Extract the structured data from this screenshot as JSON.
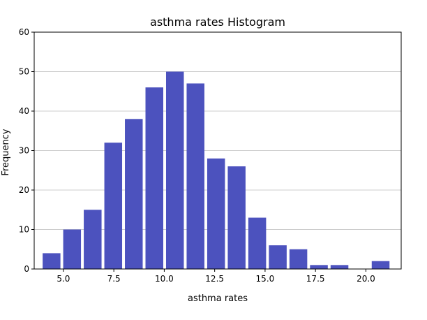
{
  "chart_data": {
    "type": "bar",
    "title": "asthma rates Histogram",
    "xlabel": "asthma rates",
    "ylabel": "Frequency",
    "xlim": [
      3.55,
      21.75
    ],
    "ylim": [
      0,
      60
    ],
    "x_ticks": [
      5.0,
      7.5,
      10.0,
      12.5,
      15.0,
      17.5,
      20.0
    ],
    "x_tick_labels": [
      "5.0",
      "7.5",
      "10.0",
      "12.5",
      "15.0",
      "17.5",
      "20.0"
    ],
    "y_ticks": [
      0,
      10,
      20,
      30,
      40,
      50,
      60
    ],
    "y_tick_labels": [
      "0",
      "10",
      "20",
      "30",
      "40",
      "50",
      "60"
    ],
    "bin_edges": [
      3.9,
      4.92,
      5.94,
      6.96,
      7.98,
      9.0,
      10.02,
      11.04,
      12.06,
      13.08,
      14.1,
      15.12,
      16.14,
      17.16,
      18.18,
      19.2,
      20.22,
      21.24
    ],
    "values": [
      4,
      10,
      15,
      32,
      38,
      46,
      50,
      47,
      28,
      26,
      13,
      6,
      5,
      1,
      1,
      0,
      2
    ],
    "bar_color": "#4c52be",
    "grid": "horizontal",
    "legend": "none"
  }
}
